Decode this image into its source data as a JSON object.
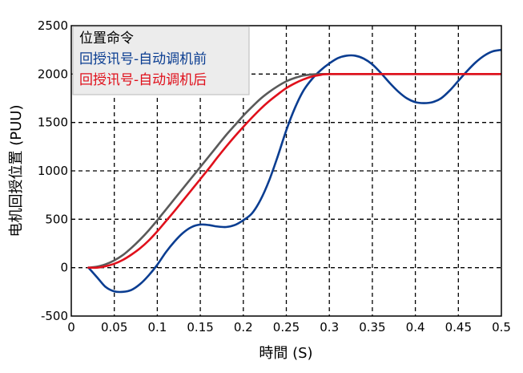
{
  "chart_data": {
    "type": "line",
    "xlabel": "時間 (S)",
    "ylabel": "电机回授位置 (PUU)",
    "xlim": [
      0,
      0.5
    ],
    "ylim": [
      -500,
      2500
    ],
    "x_ticks": [
      "0",
      "0.05",
      "0.1",
      "0.15",
      "0.2",
      "0.25",
      "0.3",
      "0.35",
      "0.4",
      "0.45",
      "0.5"
    ],
    "y_ticks": [
      "-500",
      "0",
      "500",
      "1000",
      "1500",
      "2000",
      "2500"
    ],
    "grid": "dashed",
    "legend": {
      "position": "top-left",
      "entries": [
        "位置命令",
        "回授讯号-自动调机前",
        "回授讯号-自动调机后"
      ]
    },
    "series": [
      {
        "name": "位置命令",
        "color": "#5a5a5a",
        "x": [
          0.02,
          0.03,
          0.04,
          0.05,
          0.06,
          0.07,
          0.08,
          0.09,
          0.1,
          0.11,
          0.12,
          0.13,
          0.14,
          0.15,
          0.16,
          0.17,
          0.18,
          0.19,
          0.2,
          0.21,
          0.22,
          0.23,
          0.24,
          0.25,
          0.26,
          0.27,
          0.28,
          0.29,
          0.3,
          0.35,
          0.4,
          0.45,
          0.5
        ],
        "y": [
          0,
          10,
          35,
          75,
          130,
          205,
          290,
          385,
          490,
          600,
          710,
          820,
          930,
          1040,
          1150,
          1260,
          1370,
          1470,
          1570,
          1660,
          1745,
          1815,
          1875,
          1925,
          1960,
          1985,
          1996,
          2000,
          2000,
          2000,
          2000,
          2000,
          2000
        ]
      },
      {
        "name": "回授讯号-自动调机前",
        "color": "#0a3d91",
        "x": [
          0.02,
          0.03,
          0.04,
          0.05,
          0.06,
          0.07,
          0.08,
          0.09,
          0.1,
          0.11,
          0.12,
          0.13,
          0.14,
          0.15,
          0.16,
          0.17,
          0.18,
          0.19,
          0.2,
          0.21,
          0.22,
          0.23,
          0.24,
          0.25,
          0.26,
          0.27,
          0.28,
          0.29,
          0.3,
          0.31,
          0.32,
          0.33,
          0.34,
          0.35,
          0.36,
          0.37,
          0.38,
          0.39,
          0.4,
          0.41,
          0.42,
          0.43,
          0.44,
          0.45,
          0.46,
          0.47,
          0.48,
          0.49,
          0.5
        ],
        "y": [
          0,
          -100,
          -200,
          -245,
          -250,
          -230,
          -170,
          -80,
          30,
          160,
          270,
          360,
          420,
          445,
          440,
          425,
          420,
          440,
          490,
          560,
          700,
          900,
          1150,
          1420,
          1650,
          1830,
          1950,
          2040,
          2110,
          2165,
          2190,
          2190,
          2160,
          2100,
          2010,
          1910,
          1820,
          1750,
          1710,
          1700,
          1710,
          1750,
          1830,
          1930,
          2030,
          2120,
          2190,
          2235,
          2250
        ]
      },
      {
        "name": "回授讯号-自动调机后",
        "color": "#e0101b",
        "x": [
          0.02,
          0.03,
          0.04,
          0.05,
          0.06,
          0.07,
          0.08,
          0.09,
          0.1,
          0.11,
          0.12,
          0.13,
          0.14,
          0.15,
          0.16,
          0.17,
          0.18,
          0.19,
          0.2,
          0.21,
          0.22,
          0.23,
          0.24,
          0.25,
          0.26,
          0.27,
          0.28,
          0.29,
          0.3,
          0.35,
          0.4,
          0.45,
          0.5
        ],
        "y": [
          0,
          0,
          15,
          40,
          80,
          135,
          200,
          280,
          375,
          480,
          585,
          695,
          805,
          915,
          1025,
          1140,
          1250,
          1355,
          1455,
          1550,
          1640,
          1720,
          1790,
          1855,
          1905,
          1945,
          1975,
          1992,
          2000,
          2000,
          2000,
          2000,
          2000
        ]
      }
    ]
  }
}
